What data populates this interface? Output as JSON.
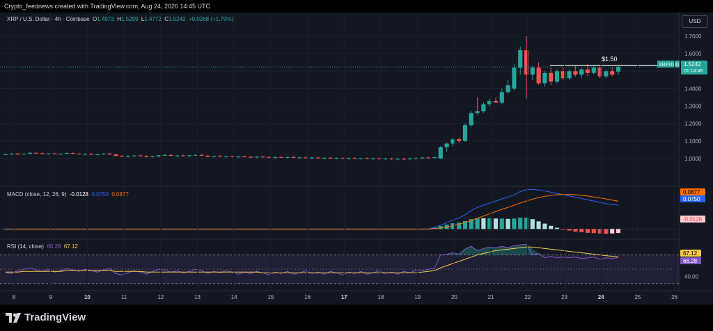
{
  "header": {
    "credit": "Crypto_feednews created with TradingView.com, Aug 24, 2026 14:45 UTC"
  },
  "symbol": {
    "name": "XRP / U.S. Dollar · 4h · Coinbase",
    "o_label": "O",
    "o": "1.4973",
    "h_label": "H",
    "h": "1.5299",
    "l_label": "L",
    "l": "1.4772",
    "c_label": "C",
    "c": "1.5242",
    "change": "+0.0268 (+1.79%)"
  },
  "currency_button": "USD",
  "price_axis": [
    "1.7000",
    "1.6000",
    "1.5000",
    "1.4000",
    "1.3000",
    "1.2000",
    "1.1000",
    "1.0000"
  ],
  "price_badge": {
    "ticker": "XRPUSD",
    "price": "1.5242",
    "countdown": "01:14:48"
  },
  "annotation": "$1.50",
  "macd": {
    "label": "MACD (close, 12, 26, 9)",
    "hist_value": "-0.0128",
    "macd_value": "0.0750",
    "signal_value": "0.0877",
    "axis_tags": [
      "0.0877",
      "0.0750",
      "-0.0128"
    ]
  },
  "rsi": {
    "label": "RSI (14, close)",
    "rsi_value": "66.28",
    "ma_value": "67.12",
    "axis_tags": [
      "67.12",
      "66.28"
    ],
    "axis_label": "40.00"
  },
  "time_axis": [
    "8",
    "9",
    "10",
    "11",
    "12",
    "13",
    "14",
    "15",
    "16",
    "17",
    "18",
    "19",
    "20",
    "21",
    "22",
    "23",
    "24",
    "25",
    "26"
  ],
  "brand": "TradingView",
  "colors": {
    "up": "#26a69a",
    "down": "#ef5350",
    "bg": "#131722",
    "macd": "#2962ff",
    "signal": "#ff6d00",
    "rsi": "#7e57c2",
    "rsi_ma": "#f7c948"
  },
  "chart_data": {
    "type": "candlestick",
    "x_unit": "4h candles",
    "x_start": "8",
    "candles": [
      [
        1.02,
        1.025,
        1.018,
        1.024
      ],
      [
        1.024,
        1.03,
        1.02,
        1.028
      ],
      [
        1.028,
        1.031,
        1.022,
        1.023
      ],
      [
        1.023,
        1.029,
        1.02,
        1.027
      ],
      [
        1.027,
        1.035,
        1.025,
        1.032
      ],
      [
        1.032,
        1.036,
        1.028,
        1.03
      ],
      [
        1.03,
        1.034,
        1.024,
        1.026
      ],
      [
        1.026,
        1.03,
        1.022,
        1.029
      ],
      [
        1.029,
        1.033,
        1.024,
        1.025
      ],
      [
        1.025,
        1.029,
        1.02,
        1.027
      ],
      [
        1.027,
        1.034,
        1.025,
        1.031
      ],
      [
        1.031,
        1.035,
        1.026,
        1.028
      ],
      [
        1.028,
        1.032,
        1.022,
        1.024
      ],
      [
        1.024,
        1.028,
        1.018,
        1.026
      ],
      [
        1.026,
        1.03,
        1.02,
        1.022
      ],
      [
        1.022,
        1.026,
        1.016,
        1.024
      ],
      [
        1.024,
        1.03,
        1.02,
        1.028
      ],
      [
        1.028,
        1.032,
        1.022,
        1.023
      ],
      [
        1.023,
        1.027,
        1.012,
        1.015
      ],
      [
        1.015,
        1.02,
        1.008,
        1.012
      ],
      [
        1.012,
        1.018,
        1.006,
        1.014
      ],
      [
        1.014,
        1.02,
        1.01,
        1.017
      ],
      [
        1.017,
        1.022,
        1.012,
        1.013
      ],
      [
        1.013,
        1.018,
        1.006,
        1.009
      ],
      [
        1.009,
        1.015,
        1.004,
        1.012
      ],
      [
        1.012,
        1.02,
        1.008,
        1.018
      ],
      [
        1.018,
        1.024,
        1.014,
        1.02
      ],
      [
        1.02,
        1.024,
        1.013,
        1.015
      ],
      [
        1.015,
        1.02,
        1.01,
        1.017
      ],
      [
        1.017,
        1.022,
        1.012,
        1.014
      ],
      [
        1.014,
        1.02,
        1.009,
        1.018
      ],
      [
        1.018,
        1.024,
        1.014,
        1.02
      ],
      [
        1.02,
        1.025,
        1.015,
        1.016
      ],
      [
        1.016,
        1.02,
        1.008,
        1.01
      ],
      [
        1.01,
        1.016,
        1.006,
        1.014
      ],
      [
        1.014,
        1.019,
        1.009,
        1.011
      ],
      [
        1.011,
        1.015,
        1.005,
        1.012
      ],
      [
        1.012,
        1.016,
        1.006,
        1.008
      ],
      [
        1.008,
        1.013,
        1.003,
        1.011
      ],
      [
        1.011,
        1.016,
        1.006,
        1.009
      ],
      [
        1.009,
        1.014,
        1.004,
        1.007
      ],
      [
        1.007,
        1.012,
        1.002,
        1.01
      ],
      [
        1.01,
        1.015,
        1.005,
        1.008
      ],
      [
        1.008,
        1.012,
        1.002,
        1.004
      ],
      [
        1.004,
        1.01,
        1.0,
        1.008
      ],
      [
        1.008,
        1.013,
        1.003,
        1.005
      ],
      [
        1.005,
        1.01,
        1.0,
        1.008
      ],
      [
        1.008,
        1.013,
        1.002,
        1.004
      ],
      [
        1.004,
        1.009,
        0.999,
        1.006
      ],
      [
        1.006,
        1.011,
        1.0,
        1.002
      ],
      [
        1.002,
        1.008,
        0.997,
        1.005
      ],
      [
        1.005,
        1.01,
        0.999,
        1.001
      ],
      [
        1.001,
        1.007,
        0.996,
        1.004
      ],
      [
        1.004,
        1.009,
        0.998,
        1.0
      ],
      [
        1.0,
        1.006,
        0.995,
        1.003
      ],
      [
        1.003,
        1.008,
        0.997,
        0.999
      ],
      [
        0.999,
        1.005,
        0.994,
        1.002
      ],
      [
        1.002,
        1.007,
        0.996,
        0.998
      ],
      [
        0.998,
        1.004,
        0.993,
        1.001
      ],
      [
        1.001,
        1.006,
        0.995,
        0.997
      ],
      [
        0.997,
        1.003,
        0.992,
        1.0
      ],
      [
        1.0,
        1.005,
        0.994,
        0.996
      ],
      [
        0.996,
        1.002,
        0.991,
        0.999
      ],
      [
        0.999,
        1.004,
        0.993,
        0.995
      ],
      [
        0.995,
        1.001,
        0.99,
        0.998
      ],
      [
        0.998,
        1.003,
        0.992,
        0.996
      ],
      [
        0.996,
        1.002,
        0.991,
        1.0
      ],
      [
        1.0,
        1.006,
        0.995,
        1.003
      ],
      [
        1.003,
        1.008,
        0.998,
        1.005
      ],
      [
        1.005,
        1.01,
        1.0,
        1.004
      ],
      [
        1.004,
        1.009,
        0.999,
        1.008
      ],
      [
        1.0,
        1.07,
        0.998,
        1.065
      ],
      [
        1.065,
        1.09,
        1.04,
        1.085
      ],
      [
        1.085,
        1.12,
        1.07,
        1.11
      ],
      [
        1.11,
        1.12,
        1.09,
        1.1
      ],
      [
        1.1,
        1.2,
        1.095,
        1.19
      ],
      [
        1.19,
        1.27,
        1.18,
        1.26
      ],
      [
        1.26,
        1.35,
        1.25,
        1.27
      ],
      [
        1.27,
        1.32,
        1.26,
        1.31
      ],
      [
        1.31,
        1.34,
        1.3,
        1.33
      ],
      [
        1.33,
        1.35,
        1.32,
        1.32
      ],
      [
        1.32,
        1.4,
        1.31,
        1.38
      ],
      [
        1.38,
        1.45,
        1.37,
        1.42
      ],
      [
        1.4,
        1.54,
        1.39,
        1.52
      ],
      [
        1.52,
        1.64,
        1.48,
        1.62
      ],
      [
        1.62,
        1.7,
        1.34,
        1.48
      ],
      [
        1.48,
        1.53,
        1.45,
        1.52
      ],
      [
        1.52,
        1.55,
        1.42,
        1.43
      ],
      [
        1.43,
        1.5,
        1.41,
        1.49
      ],
      [
        1.49,
        1.52,
        1.42,
        1.44
      ],
      [
        1.44,
        1.51,
        1.43,
        1.5
      ],
      [
        1.5,
        1.52,
        1.45,
        1.46
      ],
      [
        1.46,
        1.51,
        1.45,
        1.5
      ],
      [
        1.5,
        1.53,
        1.47,
        1.48
      ],
      [
        1.48,
        1.52,
        1.46,
        1.51
      ],
      [
        1.51,
        1.54,
        1.47,
        1.49
      ],
      [
        1.49,
        1.53,
        1.48,
        1.52
      ],
      [
        1.52,
        1.53,
        1.46,
        1.47
      ],
      [
        1.47,
        1.51,
        1.46,
        1.5
      ],
      [
        1.5,
        1.52,
        1.47,
        1.48
      ],
      [
        1.4973,
        1.5299,
        1.4772,
        1.5242
      ]
    ],
    "price_range": [
      0.88,
      1.78
    ],
    "macd_line": [
      0,
      0,
      0,
      0,
      0,
      0,
      0,
      0,
      0,
      0,
      0,
      0,
      0,
      0,
      0,
      0,
      0,
      0,
      0,
      0,
      0,
      0,
      0,
      0,
      0,
      0,
      0,
      0,
      0,
      0,
      0,
      0,
      0,
      0,
      0,
      0,
      0,
      0,
      0,
      0,
      0,
      0,
      0,
      0,
      0,
      0,
      0,
      0,
      0,
      0,
      0,
      0,
      0,
      0,
      0,
      0,
      0,
      0,
      0,
      0,
      0,
      0,
      0,
      0,
      0,
      0,
      0,
      0,
      0,
      0,
      0.005,
      0.012,
      0.02,
      0.028,
      0.035,
      0.045,
      0.058,
      0.068,
      0.075,
      0.082,
      0.088,
      0.095,
      0.1,
      0.108,
      0.118,
      0.124,
      0.125,
      0.123,
      0.12,
      0.116,
      0.112,
      0.108,
      0.104,
      0.1,
      0.096,
      0.092,
      0.088,
      0.084,
      0.08,
      0.077,
      0.075
    ],
    "signal_line": [
      0,
      0,
      0,
      0,
      0,
      0,
      0,
      0,
      0,
      0,
      0,
      0,
      0,
      0,
      0,
      0,
      0,
      0,
      0,
      0,
      0,
      0,
      0,
      0,
      0,
      0,
      0,
      0,
      0,
      0,
      0,
      0,
      0,
      0,
      0,
      0,
      0,
      0,
      0,
      0,
      0,
      0,
      0,
      0,
      0,
      0,
      0,
      0,
      0,
      0,
      0,
      0,
      0,
      0,
      0,
      0,
      0,
      0,
      0,
      0,
      0,
      0,
      0,
      0,
      0,
      0,
      0,
      0,
      0,
      0,
      0.001,
      0.003,
      0.006,
      0.01,
      0.015,
      0.02,
      0.027,
      0.034,
      0.041,
      0.048,
      0.055,
      0.062,
      0.068,
      0.075,
      0.082,
      0.088,
      0.094,
      0.099,
      0.103,
      0.106,
      0.108,
      0.109,
      0.109,
      0.108,
      0.106,
      0.104,
      0.101,
      0.098,
      0.095,
      0.091,
      0.0877
    ],
    "macd_range": [
      -0.03,
      0.13
    ],
    "rsi_line": [
      45,
      44,
      48,
      50,
      52,
      49,
      47,
      50,
      46,
      48,
      51,
      49,
      47,
      50,
      48,
      46,
      49,
      51,
      44,
      42,
      45,
      48,
      46,
      43,
      47,
      50,
      49,
      46,
      48,
      45,
      47,
      50,
      48,
      44,
      47,
      45,
      48,
      46,
      43,
      46,
      44,
      47,
      45,
      42,
      46,
      44,
      47,
      43,
      45,
      48,
      44,
      46,
      43,
      47,
      45,
      42,
      46,
      44,
      47,
      43,
      45,
      48,
      44,
      46,
      43,
      47,
      45,
      49,
      48,
      50,
      51,
      70,
      71,
      73,
      71,
      78,
      82,
      76,
      79,
      81,
      80,
      82,
      80,
      83,
      84,
      85,
      70,
      72,
      66,
      68,
      66,
      67,
      66,
      67,
      65,
      66,
      67,
      64,
      66,
      65,
      66.28
    ],
    "rsi_ma": [
      46,
      46,
      46,
      47,
      47,
      47,
      47,
      47,
      47,
      47,
      48,
      48,
      48,
      48,
      48,
      48,
      48,
      48,
      47,
      47,
      47,
      47,
      47,
      46,
      46,
      46,
      46,
      46,
      46,
      46,
      46,
      46,
      46,
      46,
      46,
      46,
      46,
      46,
      46,
      46,
      46,
      46,
      45,
      45,
      45,
      45,
      45,
      45,
      45,
      45,
      45,
      45,
      45,
      45,
      45,
      45,
      45,
      45,
      45,
      45,
      45,
      45,
      45,
      45,
      45,
      45,
      45,
      45,
      46,
      47,
      48,
      52,
      55,
      58,
      61,
      64,
      67,
      70,
      72,
      74,
      76,
      77,
      78,
      79,
      80,
      81,
      81,
      80,
      79,
      78,
      77,
      76,
      75,
      74,
      73,
      72,
      71,
      70,
      69,
      68,
      67.12
    ],
    "rsi_range": [
      22,
      90
    ]
  }
}
